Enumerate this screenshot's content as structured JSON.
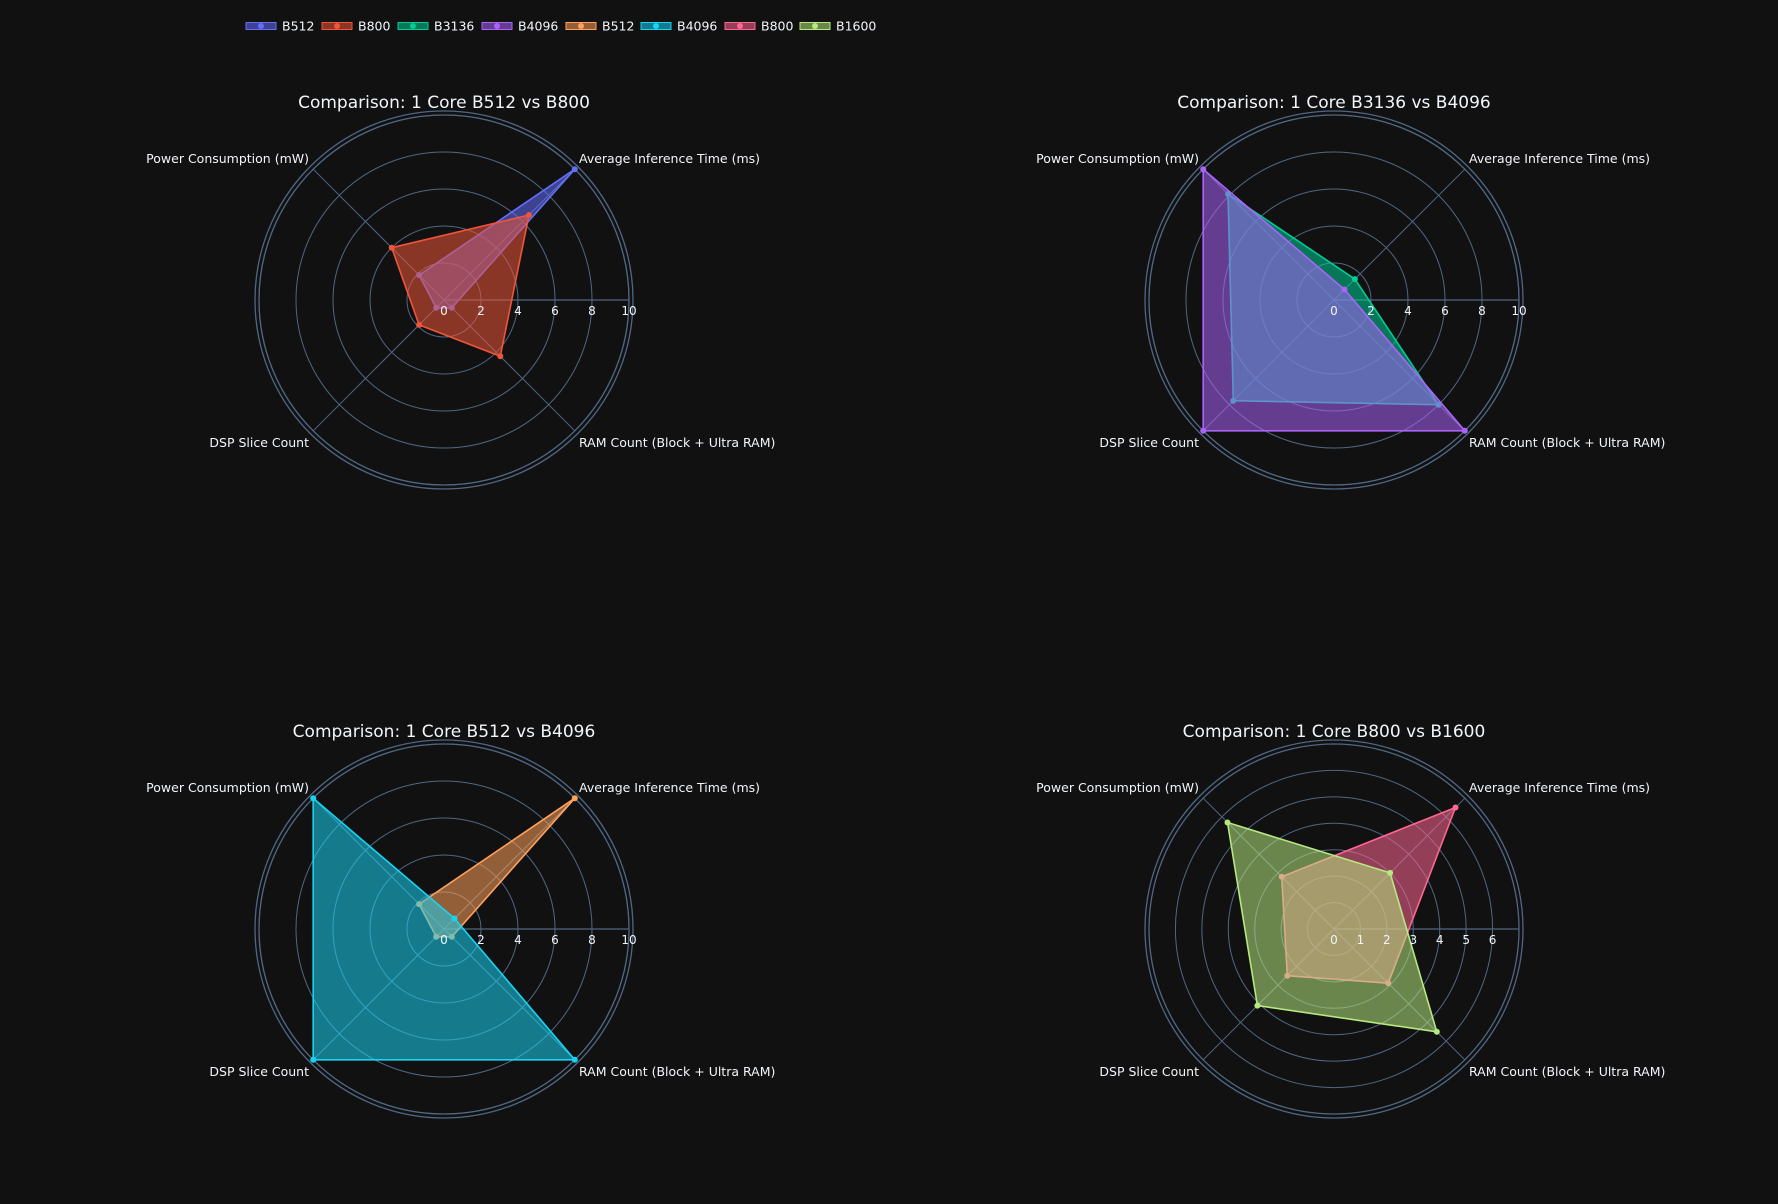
{
  "legend": [
    {
      "name": "B512",
      "color": "#636efa"
    },
    {
      "name": "B800",
      "color": "#ef553b"
    },
    {
      "name": "B3136",
      "color": "#00cc96"
    },
    {
      "name": "B4096",
      "color": "#ab63fa"
    },
    {
      "name": "B512",
      "color": "#ffa15a"
    },
    {
      "name": "B4096",
      "color": "#19d3f3"
    },
    {
      "name": "B800",
      "color": "#ff6692"
    },
    {
      "name": "B1600",
      "color": "#b6e880"
    }
  ],
  "chart_data": [
    {
      "type": "radar",
      "title": "Comparison: 1 Core B512 vs B800",
      "axes": [
        "Average Inference Time (ms)",
        "Power Consumption (mW)",
        "DSP Slice Count",
        "RAM Count (Block + Ultra RAM)"
      ],
      "radial_range": [
        0,
        10
      ],
      "radial_ticks": [
        0,
        2,
        4,
        6,
        8,
        10
      ],
      "series": [
        {
          "name": "B512",
          "color": "#636efa",
          "values": [
            10,
            1.9,
            0.6,
            0.6
          ]
        },
        {
          "name": "B800",
          "color": "#ef553b",
          "values": [
            6.5,
            4,
            1.9,
            4.3
          ]
        }
      ]
    },
    {
      "type": "radar",
      "title": "Comparison: 1 Core B3136 vs B4096",
      "axes": [
        "Average Inference Time (ms)",
        "Power Consumption (mW)",
        "DSP Slice Count",
        "RAM Count (Block + Ultra RAM)"
      ],
      "radial_range": [
        0,
        10
      ],
      "radial_ticks": [
        0,
        2,
        4,
        6,
        8,
        10
      ],
      "series": [
        {
          "name": "B3136",
          "color": "#00cc96",
          "values": [
            1.6,
            8.1,
            7.7,
            8
          ]
        },
        {
          "name": "B4096",
          "color": "#ab63fa",
          "values": [
            0.8,
            10,
            10,
            10
          ]
        }
      ]
    },
    {
      "type": "radar",
      "title": "Comparison: 1 Core B512 vs B4096",
      "axes": [
        "Average Inference Time (ms)",
        "Power Consumption (mW)",
        "DSP Slice Count",
        "RAM Count (Block + Ultra RAM)"
      ],
      "radial_range": [
        0,
        10
      ],
      "radial_ticks": [
        0,
        2,
        4,
        6,
        8,
        10
      ],
      "series": [
        {
          "name": "B512",
          "color": "#ffa15a",
          "values": [
            10,
            1.9,
            0.6,
            0.6
          ]
        },
        {
          "name": "B4096",
          "color": "#19d3f3",
          "values": [
            0.8,
            10,
            10,
            10
          ]
        }
      ]
    },
    {
      "type": "radar",
      "title": "Comparison: 1 Core B800 vs B1600",
      "axes": [
        "Average Inference Time (ms)",
        "Power Consumption (mW)",
        "DSP Slice Count",
        "RAM Count (Block + Ultra RAM)"
      ],
      "radial_range": [
        0,
        7
      ],
      "radial_ticks": [
        0,
        1,
        2,
        3,
        4,
        5,
        6
      ],
      "series": [
        {
          "name": "B800",
          "color": "#ff6692",
          "values": [
            6.5,
            2.8,
            2.5,
            2.9
          ]
        },
        {
          "name": "B1600",
          "color": "#b6e880",
          "values": [
            3,
            5.7,
            4.1,
            5.5
          ]
        }
      ]
    }
  ]
}
